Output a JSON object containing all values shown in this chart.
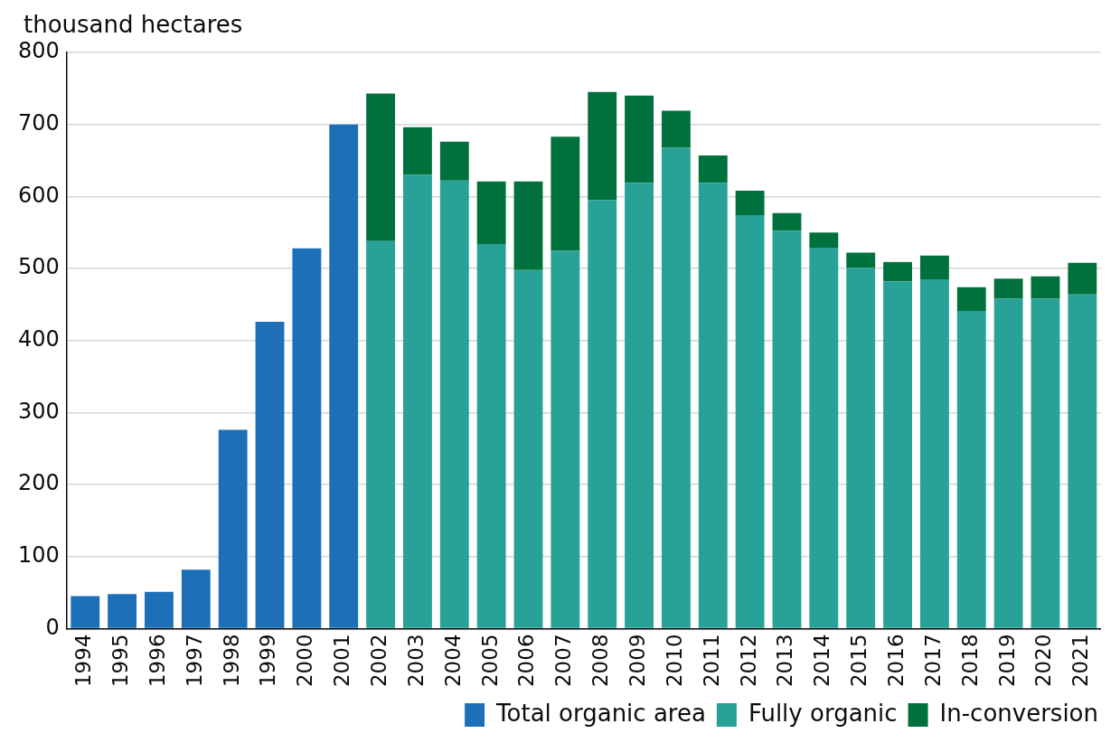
{
  "chart_data": {
    "type": "bar",
    "ylabel": "thousand hectares",
    "categories": [
      "1994",
      "1995",
      "1996",
      "1997",
      "1998",
      "1999",
      "2000",
      "2001",
      "2002",
      "2003",
      "2004",
      "2005",
      "2006",
      "2007",
      "2008",
      "2009",
      "2010",
      "2011",
      "2012",
      "2013",
      "2014",
      "2015",
      "2016",
      "2017",
      "2018",
      "2019",
      "2020",
      "2021"
    ],
    "series": [
      {
        "name": "Total organic area",
        "color": "#1d70b8",
        "values": [
          45,
          48,
          51,
          82,
          276,
          426,
          528,
          700,
          null,
          null,
          null,
          null,
          null,
          null,
          null,
          null,
          null,
          null,
          null,
          null,
          null,
          null,
          null,
          null,
          null,
          null,
          null,
          null
        ]
      },
      {
        "name": "Fully organic",
        "color": "#28a197",
        "values": [
          null,
          null,
          null,
          null,
          null,
          null,
          null,
          null,
          538,
          630,
          622,
          534,
          498,
          525,
          595,
          619,
          668,
          619,
          574,
          552,
          529,
          501,
          482,
          485,
          441,
          458,
          458,
          464
        ]
      },
      {
        "name": "In-conversion",
        "color": "#00703c",
        "values": [
          null,
          null,
          null,
          null,
          null,
          null,
          null,
          null,
          205,
          66,
          54,
          87,
          123,
          158,
          150,
          121,
          51,
          38,
          34,
          25,
          21,
          21,
          27,
          33,
          33,
          28,
          31,
          44
        ]
      }
    ],
    "stacked": true,
    "ylim": [
      0,
      800
    ],
    "yticks": [
      0,
      100,
      200,
      300,
      400,
      500,
      600,
      700,
      800
    ],
    "grid": "y",
    "legend": "bottom right"
  }
}
